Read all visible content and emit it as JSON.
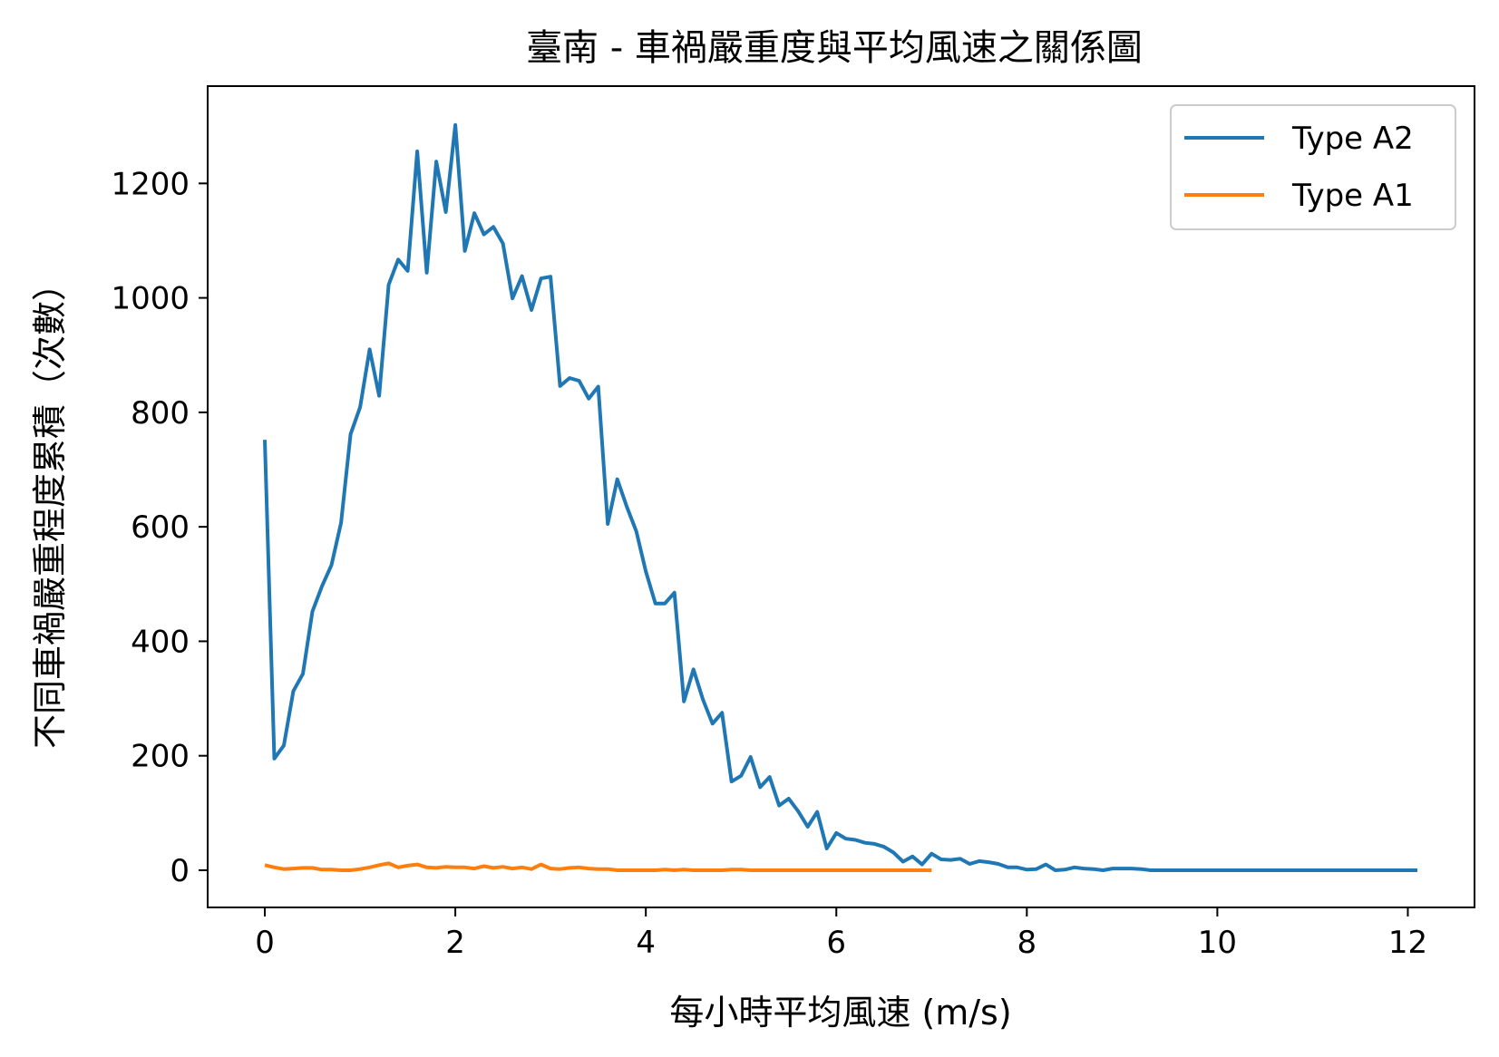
{
  "chart_data": {
    "type": "line",
    "title": "臺南 - 車禍嚴重度與平均風速之關係圖",
    "xlabel": "每小時平均風速 (m/s)",
    "ylabel": "不同車禍嚴重程度累積（次數）",
    "xlim": [
      -0.6,
      12.7
    ],
    "ylim": [
      -65,
      1370
    ],
    "xticks": [
      0,
      2,
      4,
      6,
      8,
      10,
      12
    ],
    "yticks": [
      0,
      200,
      400,
      600,
      800,
      1000,
      1200
    ],
    "grid": false,
    "legend_position": "top-right",
    "series": [
      {
        "name": "Type A2",
        "color": "#1f77b4",
        "x": [
          0.0,
          0.1,
          0.2,
          0.3,
          0.4,
          0.5,
          0.6,
          0.7,
          0.8,
          0.9,
          1.0,
          1.1,
          1.2,
          1.3,
          1.4,
          1.5,
          1.6,
          1.7,
          1.8,
          1.9,
          2.0,
          2.1,
          2.2,
          2.3,
          2.4,
          2.5,
          2.6,
          2.7,
          2.8,
          2.9,
          3.0,
          3.1,
          3.2,
          3.3,
          3.4,
          3.5,
          3.6,
          3.7,
          3.8,
          3.9,
          4.0,
          4.1,
          4.2,
          4.3,
          4.4,
          4.5,
          4.6,
          4.7,
          4.8,
          4.9,
          5.0,
          5.1,
          5.2,
          5.3,
          5.4,
          5.5,
          5.6,
          5.7,
          5.8,
          5.9,
          6.0,
          6.1,
          6.2,
          6.3,
          6.4,
          6.5,
          6.6,
          6.7,
          6.8,
          6.9,
          7.0,
          7.1,
          7.2,
          7.3,
          7.4,
          7.5,
          7.6,
          7.7,
          7.8,
          7.9,
          8.0,
          8.1,
          8.2,
          8.3,
          8.4,
          8.5,
          8.6,
          8.7,
          8.8,
          8.9,
          9.0,
          9.1,
          9.2,
          9.3,
          9.4,
          9.5,
          9.6,
          9.7,
          9.8,
          9.9,
          10.0,
          10.1,
          10.2,
          10.3,
          10.4,
          10.5,
          10.6,
          10.7,
          10.8,
          10.9,
          11.0,
          11.1,
          11.2,
          11.3,
          11.4,
          11.5,
          11.6,
          11.7,
          11.8,
          11.9,
          12.0,
          12.1
        ],
        "values": [
          752,
          195,
          218,
          313,
          343,
          452,
          496,
          533,
          607,
          762,
          809,
          910,
          829,
          1023,
          1067,
          1047,
          1256,
          1044,
          1238,
          1150,
          1302,
          1082,
          1148,
          1111,
          1124,
          1095,
          999,
          1038,
          979,
          1034,
          1037,
          846,
          860,
          855,
          824,
          845,
          605,
          683,
          635,
          592,
          522,
          466,
          466,
          485,
          295,
          351,
          298,
          256,
          275,
          155,
          165,
          198,
          145,
          163,
          113,
          125,
          103,
          76,
          102,
          38,
          65,
          55,
          53,
          48,
          46,
          41,
          31,
          15,
          24,
          10,
          29,
          19,
          18,
          20,
          11,
          16,
          14,
          11,
          5,
          5,
          1,
          2,
          10,
          0,
          1,
          5,
          3,
          2,
          0,
          3,
          3,
          3,
          2,
          0,
          0,
          0,
          0,
          0,
          0,
          0,
          0,
          0,
          0,
          0,
          0,
          0,
          0,
          0,
          0,
          0,
          0,
          0,
          0,
          0,
          0,
          0,
          0,
          0,
          0,
          0,
          0,
          0
        ]
      },
      {
        "name": "Type A1",
        "color": "#ff7f0e",
        "x": [
          0.0,
          0.1,
          0.2,
          0.3,
          0.4,
          0.5,
          0.6,
          0.7,
          0.8,
          0.9,
          1.0,
          1.1,
          1.2,
          1.3,
          1.4,
          1.5,
          1.6,
          1.7,
          1.8,
          1.9,
          2.0,
          2.1,
          2.2,
          2.3,
          2.4,
          2.5,
          2.6,
          2.7,
          2.8,
          2.9,
          3.0,
          3.1,
          3.2,
          3.3,
          3.4,
          3.5,
          3.6,
          3.7,
          3.8,
          3.9,
          4.0,
          4.1,
          4.2,
          4.3,
          4.4,
          4.5,
          4.6,
          4.7,
          4.8,
          4.9,
          5.0,
          5.1,
          5.2,
          5.3,
          5.4,
          5.5,
          5.6,
          5.7,
          5.8,
          5.9,
          6.0,
          6.1,
          6.2,
          6.3,
          6.4,
          6.5,
          6.6,
          6.7,
          6.8,
          6.9,
          7.0
        ],
        "values": [
          9,
          5,
          2,
          3,
          4,
          4,
          1,
          1,
          0,
          0,
          2,
          5,
          9,
          12,
          5,
          8,
          10,
          5,
          4,
          6,
          5,
          5,
          3,
          7,
          4,
          6,
          3,
          5,
          2,
          10,
          3,
          2,
          4,
          5,
          3,
          2,
          2,
          0,
          0,
          0,
          0,
          0,
          1,
          0,
          1,
          0,
          0,
          0,
          0,
          1,
          1,
          0,
          0,
          0,
          0,
          0,
          0,
          0,
          0,
          0,
          0,
          0,
          0,
          0,
          0,
          0,
          0,
          0,
          0,
          0,
          0
        ]
      }
    ]
  }
}
